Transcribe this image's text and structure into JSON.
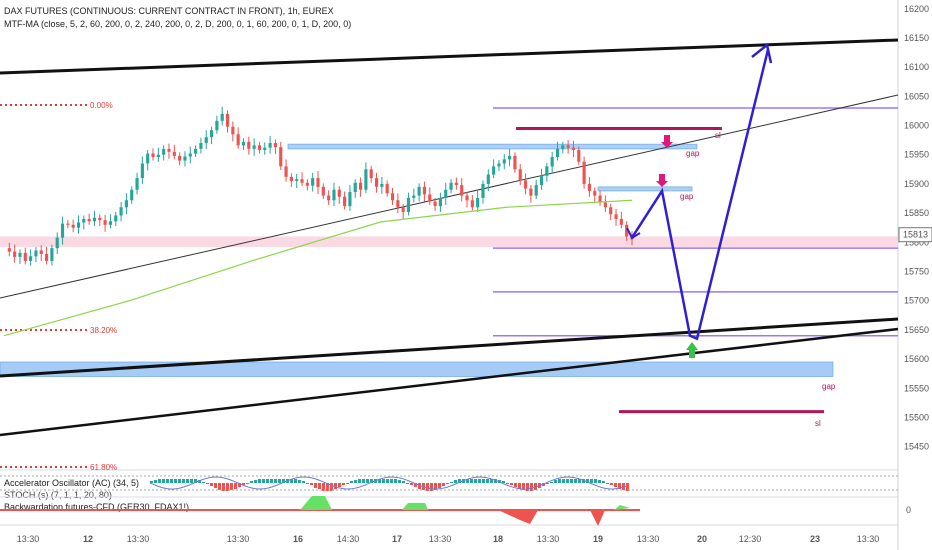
{
  "header": {
    "title": "DAX FUTURES (CONTINUOUS: CURRENT CONTRACT IN FRONT), 1h, EUREX",
    "indicator": "MTF-MA (close, 5, 2, 60, 200, 0, 2, 240, 200, 0, 2, D, 200, 0, 1, 60, 200, 0, 1, D, 200, 0)"
  },
  "pane2": {
    "indicator1": "Accelerator Oscillator (AC) (34, 5)",
    "indicator2": "STOCH (s) (7, 1, 1, 20, 80)"
  },
  "pane3": {
    "indicator": "Backwardation,futures-CFD (GER30, FDAX1!)",
    "zero_label": "0"
  },
  "fib_labels": [
    "0.00%",
    "38.20%",
    "61.80%"
  ],
  "annotations": {
    "gap1": "gap",
    "gap2": "gap",
    "gap3": "gap",
    "sl1": "sl",
    "sl2": "sl"
  },
  "colors": {
    "bull": "#26a69a",
    "bear": "#ef5350",
    "ma": "#8bd64a",
    "projection": "#2f1fd4",
    "trendline": "#111111",
    "blue_zone": "#9cc7f5",
    "pink_zone": "#f8c9d7",
    "violet": "#9a78f0",
    "stop": "#b4145a",
    "arrow_pink": "#e0187a",
    "arrow_green": "#38c24a",
    "fib": "#e53935",
    "price_badge": "#ffffff"
  },
  "chart_data": {
    "type": "candlestick",
    "y_axis": {
      "ticks": [
        16200,
        16150,
        16100,
        16050,
        16000,
        15950,
        15900,
        15850,
        15800,
        15750,
        15700,
        15650,
        15600,
        15550,
        15500,
        15450
      ],
      "range": [
        15410,
        16215
      ]
    },
    "x_axis": {
      "ticks": [
        "13:30",
        "12",
        "13:30",
        "13:30",
        "16",
        "14:30",
        "17",
        "13:30",
        "18",
        "13:30",
        "19",
        "13:30",
        "20",
        "12:30",
        "23",
        "13:30"
      ]
    },
    "current_price": 15813,
    "series": [
      {
        "name": "price",
        "values": [
          15790,
          15784,
          15775,
          15782,
          15768,
          15776,
          15786,
          15780,
          15768,
          15790,
          15808,
          15832,
          15830,
          15825,
          15834,
          15840,
          15836,
          15842,
          15838,
          15830,
          15836,
          15846,
          15860,
          15872,
          15890,
          15910,
          15935,
          15952,
          15946,
          15950,
          15960,
          15955,
          15948,
          15940,
          15947,
          15952,
          15960,
          15970,
          15980,
          15992,
          16008,
          16020,
          15998,
          15985,
          15966,
          15972,
          15960,
          15966,
          15958,
          15962,
          15970,
          15963,
          15930,
          15912,
          15905,
          15908,
          15902,
          15897,
          15910,
          15895,
          15880,
          15872,
          15890,
          15878,
          15862,
          15886,
          15902,
          15890,
          15925,
          15910,
          15895,
          15900,
          15884,
          15872,
          15860,
          15852,
          15876,
          15880,
          15895,
          15882,
          15870,
          15862,
          15876,
          15890,
          15902,
          15898,
          15880,
          15872,
          15860,
          15876,
          15900,
          15916,
          15930,
          15935,
          15942,
          15948,
          15925,
          15906,
          15892,
          15880,
          15898,
          15914,
          15930,
          15946,
          15960,
          15966,
          15962,
          15958,
          15938,
          15900,
          15888,
          15880,
          15868,
          15860,
          15848,
          15840,
          15830,
          15810,
          15805
        ]
      },
      {
        "name": "ma",
        "values": [
          15640,
          15700,
          15770,
          15835,
          15860,
          15872
        ]
      }
    ],
    "levels": {
      "blue_zone_top": [
        15968,
        15960
      ],
      "blue_zone_gap2": [
        15895,
        15888
      ],
      "pink_zone": [
        15810,
        15792
      ],
      "violet_lines": [
        16030,
        15790,
        15715,
        15640
      ],
      "stop_lines": [
        15995,
        15510
      ],
      "big_blue_zone": [
        15595,
        15570
      ]
    },
    "projection": {
      "x": [
        "19 13:30",
        "20 02:00",
        "20 08:00",
        "20 13:30",
        "21 12:00"
      ],
      "y": [
        15808,
        15888,
        15640,
        15635,
        16130
      ]
    }
  }
}
